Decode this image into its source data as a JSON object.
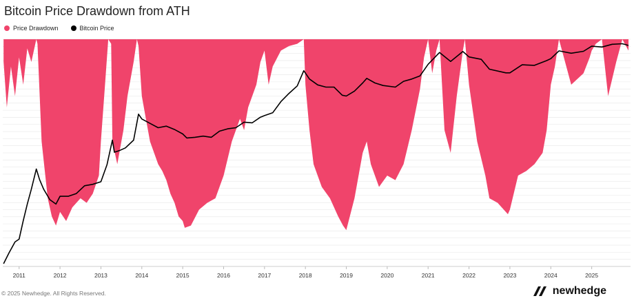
{
  "title": "Bitcoin Price Drawdown from ATH",
  "legend": {
    "drawdown_label": "Price Drawdown",
    "price_label": "Bitcoin Price"
  },
  "colors": {
    "drawdown": "#F0446B",
    "price": "#000000",
    "grid": "#e6e6e6"
  },
  "footer": {
    "copyright": "© 2025 Newhedge. All Rights Reserved.",
    "brand": "newhedge",
    "brand_icon": "newhedge-logo-icon"
  },
  "chart_data": {
    "type": "area",
    "title": "Bitcoin Price Drawdown from ATH",
    "x_ticks": [
      "2011",
      "2012",
      "2013",
      "2014",
      "2015",
      "2016",
      "2017",
      "2018",
      "2019",
      "2020",
      "2021",
      "2022",
      "2023",
      "2024",
      "2025"
    ],
    "xlim": [
      2010.6,
      2025.95
    ],
    "grid": true,
    "legend_position": "top-left",
    "series": [
      {
        "name": "Price Drawdown",
        "kind": "area",
        "y_unit": "percent_from_ath",
        "ylim": [
          -100,
          0
        ],
        "x": [
          2010.62,
          2010.7,
          2010.8,
          2010.9,
          2011.0,
          2011.1,
          2011.2,
          2011.3,
          2011.42,
          2011.45,
          2011.55,
          2011.7,
          2011.8,
          2011.9,
          2012.0,
          2012.15,
          2012.3,
          2012.5,
          2012.65,
          2012.8,
          2012.95,
          2013.0,
          2013.1,
          2013.18,
          2013.25,
          2013.28,
          2013.4,
          2013.55,
          2013.65,
          2013.8,
          2013.88,
          2013.92,
          2014.0,
          2014.1,
          2014.2,
          2014.3,
          2014.4,
          2014.5,
          2014.6,
          2014.7,
          2014.8,
          2014.9,
          2015.0,
          2015.05,
          2015.2,
          2015.4,
          2015.6,
          2015.8,
          2016.0,
          2016.2,
          2016.4,
          2016.5,
          2016.6,
          2016.8,
          2016.9,
          2017.0,
          2017.1,
          2017.2,
          2017.4,
          2017.6,
          2017.8,
          2017.96,
          2018.0,
          2018.1,
          2018.2,
          2018.4,
          2018.6,
          2018.8,
          2018.92,
          2019.0,
          2019.2,
          2019.4,
          2019.5,
          2019.6,
          2019.8,
          2020.0,
          2020.2,
          2020.4,
          2020.6,
          2020.8,
          2020.9,
          2021.0,
          2021.1,
          2021.2,
          2021.28,
          2021.4,
          2021.55,
          2021.7,
          2021.85,
          2021.9,
          2022.0,
          2022.2,
          2022.4,
          2022.5,
          2022.7,
          2022.85,
          2022.95,
          2023.0,
          2023.2,
          2023.4,
          2023.6,
          2023.8,
          2023.9,
          2024.0,
          2024.1,
          2024.2,
          2024.5,
          2024.8,
          2024.95,
          2025.0,
          2025.1,
          2025.25,
          2025.4,
          2025.6,
          2025.75,
          2025.9
        ],
        "values": [
          -10,
          -30,
          -12,
          -25,
          -8,
          -20,
          -4,
          -10,
          0,
          -2,
          -45,
          -70,
          -78,
          -82,
          -76,
          -80,
          -74,
          -70,
          -72,
          -68,
          -60,
          -45,
          -20,
          0,
          -2,
          -45,
          -55,
          -40,
          -25,
          -10,
          0,
          -3,
          -25,
          -35,
          -45,
          -50,
          -55,
          -58,
          -62,
          -68,
          -72,
          -78,
          -80,
          -83,
          -82,
          -75,
          -72,
          -70,
          -60,
          -45,
          -35,
          -40,
          -30,
          -20,
          -10,
          -5,
          -20,
          -12,
          -5,
          -3,
          -2,
          0,
          -20,
          -40,
          -55,
          -65,
          -70,
          -78,
          -82,
          -84,
          -70,
          -50,
          -45,
          -55,
          -65,
          -60,
          -62,
          -55,
          -40,
          -22,
          -8,
          0,
          -15,
          -5,
          0,
          -40,
          -50,
          -25,
          -5,
          0,
          -20,
          -45,
          -60,
          -70,
          -72,
          -75,
          -77,
          -75,
          -60,
          -58,
          -55,
          -50,
          -40,
          -20,
          -12,
          0,
          -20,
          -15,
          -8,
          -5,
          -2,
          0,
          -25,
          -10,
          0,
          -5
        ]
      },
      {
        "name": "Bitcoin Price",
        "kind": "line",
        "y_scale": "log",
        "y_unit": "USD",
        "ylim": [
          0.05,
          150000
        ],
        "x": [
          2010.62,
          2010.75,
          2010.9,
          2011.0,
          2011.1,
          2011.2,
          2011.3,
          2011.42,
          2011.5,
          2011.6,
          2011.75,
          2011.9,
          2012.0,
          2012.2,
          2012.4,
          2012.6,
          2012.8,
          2013.0,
          2013.15,
          2013.28,
          2013.33,
          2013.45,
          2013.6,
          2013.8,
          2013.92,
          2014.0,
          2014.2,
          2014.4,
          2014.6,
          2014.8,
          2015.0,
          2015.1,
          2015.3,
          2015.5,
          2015.7,
          2015.9,
          2016.1,
          2016.3,
          2016.5,
          2016.7,
          2016.9,
          2017.0,
          2017.2,
          2017.4,
          2017.6,
          2017.8,
          2017.96,
          2018.1,
          2018.3,
          2018.5,
          2018.7,
          2018.9,
          2019.0,
          2019.2,
          2019.4,
          2019.5,
          2019.7,
          2019.9,
          2020.2,
          2020.4,
          2020.6,
          2020.8,
          2021.0,
          2021.28,
          2021.55,
          2021.85,
          2022.0,
          2022.3,
          2022.5,
          2022.9,
          2023.0,
          2023.3,
          2023.6,
          2023.9,
          2024.0,
          2024.2,
          2024.5,
          2024.8,
          2025.0,
          2025.25,
          2025.5,
          2025.75,
          2025.9
        ],
        "values": [
          0.06,
          0.12,
          0.25,
          0.3,
          1,
          3,
          8,
          30,
          15,
          8,
          4,
          3,
          5,
          5,
          6,
          10,
          11,
          13,
          40,
          200,
          90,
          100,
          120,
          200,
          1100,
          800,
          600,
          450,
          500,
          400,
          300,
          230,
          240,
          260,
          240,
          360,
          420,
          450,
          650,
          620,
          900,
          1000,
          1200,
          2500,
          4300,
          7000,
          19000,
          11000,
          7500,
          6500,
          6500,
          3800,
          3600,
          5000,
          8500,
          11500,
          8500,
          7200,
          6500,
          9500,
          11000,
          13500,
          29000,
          63000,
          35000,
          67000,
          47000,
          40000,
          21000,
          16500,
          16500,
          28000,
          27000,
          37000,
          42000,
          70000,
          60000,
          68000,
          95000,
          90000,
          108000,
          112000,
          100000
        ]
      }
    ]
  }
}
